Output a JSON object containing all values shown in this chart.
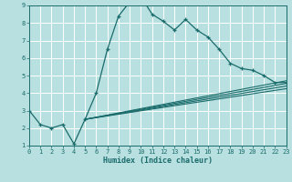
{
  "xlabel": "Humidex (Indice chaleur)",
  "xlim": [
    0,
    23
  ],
  "ylim": [
    1,
    9
  ],
  "xticks": [
    0,
    1,
    2,
    3,
    4,
    5,
    6,
    7,
    8,
    9,
    10,
    11,
    12,
    13,
    14,
    15,
    16,
    17,
    18,
    19,
    20,
    21,
    22,
    23
  ],
  "yticks": [
    1,
    2,
    3,
    4,
    5,
    6,
    7,
    8,
    9
  ],
  "background_color": "#b8e0e0",
  "line_color": "#1a6b6b",
  "grid_color": "#ffffff",
  "series_main": {
    "x": [
      0,
      1,
      2,
      3,
      4,
      5,
      6,
      7,
      8,
      9,
      10,
      11,
      12,
      13,
      14,
      15,
      16,
      17,
      18,
      19,
      20,
      21,
      22,
      23
    ],
    "y": [
      3.0,
      2.2,
      2.0,
      2.2,
      1.1,
      2.5,
      4.0,
      6.5,
      8.4,
      9.2,
      9.5,
      8.5,
      8.1,
      7.6,
      8.2,
      7.6,
      7.2,
      6.5,
      5.7,
      5.4,
      5.3,
      5.0,
      4.6,
      4.6
    ]
  },
  "series_lines": [
    {
      "x": [
        5,
        23
      ],
      "y": [
        2.5,
        4.7
      ]
    },
    {
      "x": [
        5,
        23
      ],
      "y": [
        2.5,
        4.55
      ]
    },
    {
      "x": [
        5,
        23
      ],
      "y": [
        2.5,
        4.4
      ]
    },
    {
      "x": [
        5,
        23
      ],
      "y": [
        2.5,
        4.25
      ]
    }
  ]
}
